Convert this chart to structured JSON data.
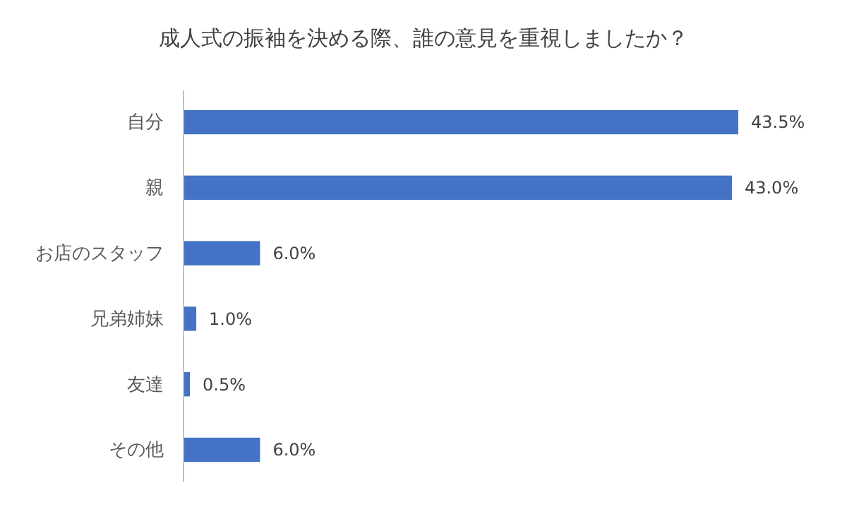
{
  "chart_data": {
    "type": "bar",
    "orientation": "horizontal",
    "title": "成人式の振袖を決める際、誰の意見を重視しましたか？",
    "categories": [
      "自分",
      "親",
      "お店のスタッフ",
      "兄弟姉妹",
      "友達",
      "その他"
    ],
    "values": [
      43.5,
      43.0,
      6.0,
      1.0,
      0.5,
      6.0
    ],
    "value_labels": [
      "43.5%",
      "43.0%",
      "6.0%",
      "1.0%",
      "0.5%",
      "6.0%"
    ],
    "color": "#4472c4",
    "tick_labels": "y"
  }
}
